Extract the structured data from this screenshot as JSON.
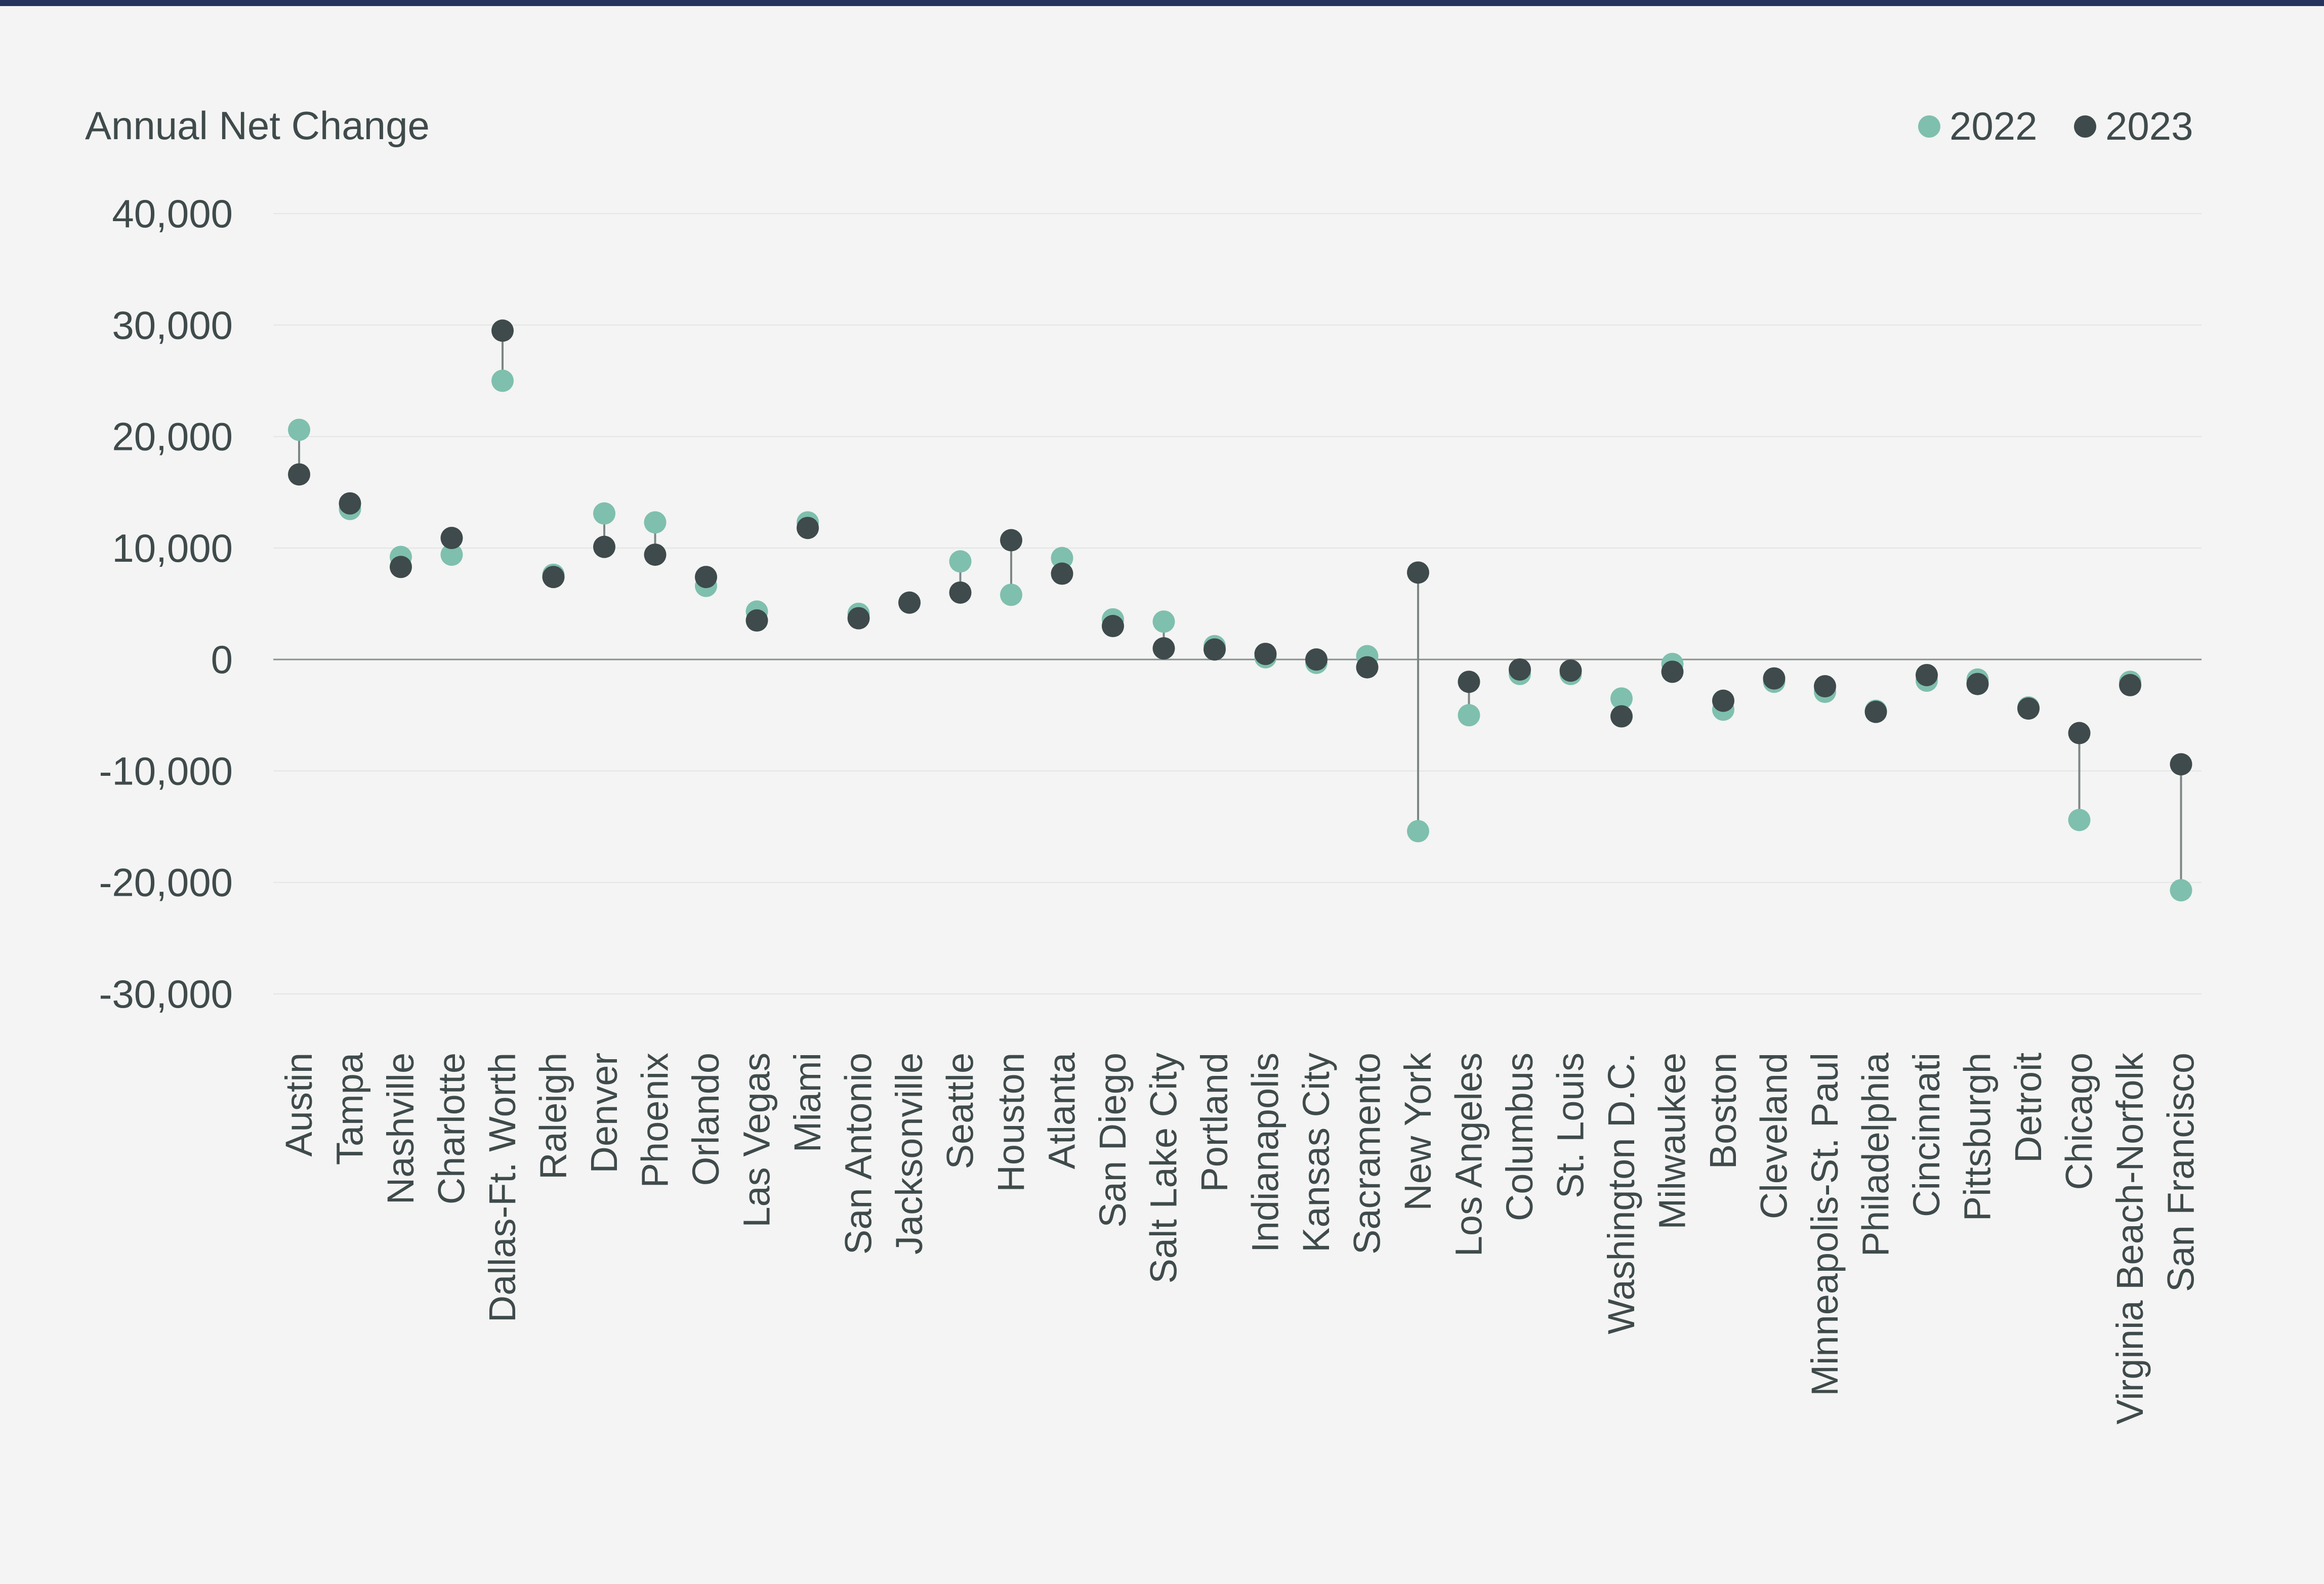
{
  "chart_data": {
    "type": "scatter",
    "title": "Annual Net Change",
    "xlabel": "",
    "ylabel": "Annual Net Change",
    "ylim": [
      -30000,
      40000
    ],
    "yticks": [
      40000,
      30000,
      20000,
      10000,
      0,
      -10000,
      -20000,
      -30000
    ],
    "ytick_labels": [
      "40,000",
      "30,000",
      "20,000",
      "10,000",
      "0",
      "-10,000",
      "-20,000",
      "-30,000"
    ],
    "grid": true,
    "legend": "top-right",
    "categories": [
      "Austin",
      "Tampa",
      "Nashville",
      "Charlotte",
      "Dallas-Ft. Worth",
      "Raleigh",
      "Denver",
      "Phoenix",
      "Orlando",
      "Las Vegas",
      "Miami",
      "San Antonio",
      "Jacksonville",
      "Seattle",
      "Houston",
      "Atlanta",
      "San Diego",
      "Salt Lake City",
      "Portland",
      "Indianapolis",
      "Kansas City",
      "Sacramento",
      "New York",
      "Los Angeles",
      "Columbus",
      "St. Louis",
      "Washington D.C.",
      "Milwaukee",
      "Boston",
      "Cleveland",
      "Minneapolis-St. Paul",
      "Philadelphia",
      "Cincinnati",
      "Pittsburgh",
      "Detroit",
      "Chicago",
      "Virginia Beach-Norfolk",
      "San Francisco"
    ],
    "series": [
      {
        "name": "2022",
        "color": "#7fbfad",
        "values": [
          20600,
          13500,
          9200,
          9400,
          25000,
          7600,
          13100,
          12300,
          6600,
          4300,
          12300,
          4100,
          5100,
          8800,
          5800,
          9100,
          3600,
          3400,
          1200,
          200,
          -300,
          300,
          -15400,
          -5000,
          -1300,
          -1300,
          -3500,
          -400,
          -4500,
          -2000,
          -2900,
          -4600,
          -1900,
          -1800,
          -4300,
          -14400,
          -2000,
          -20700
        ]
      },
      {
        "name": "2023",
        "color": "#3e4a4b",
        "values": [
          16600,
          14000,
          8300,
          10900,
          29500,
          7400,
          10100,
          9400,
          7400,
          3500,
          11800,
          3700,
          5100,
          6000,
          10700,
          7700,
          3000,
          1000,
          900,
          500,
          0,
          -700,
          7800,
          -2000,
          -900,
          -1000,
          -5100,
          -1100,
          -3700,
          -1700,
          -2400,
          -4700,
          -1400,
          -2200,
          -4400,
          -6600,
          -2300,
          -9400
        ]
      }
    ]
  },
  "colors": {
    "top_bar": "#24345e",
    "grid": "#e3e5e4",
    "zero_line": "#8a9190",
    "connector": "#7d8685",
    "background": "#f3f4f3"
  }
}
